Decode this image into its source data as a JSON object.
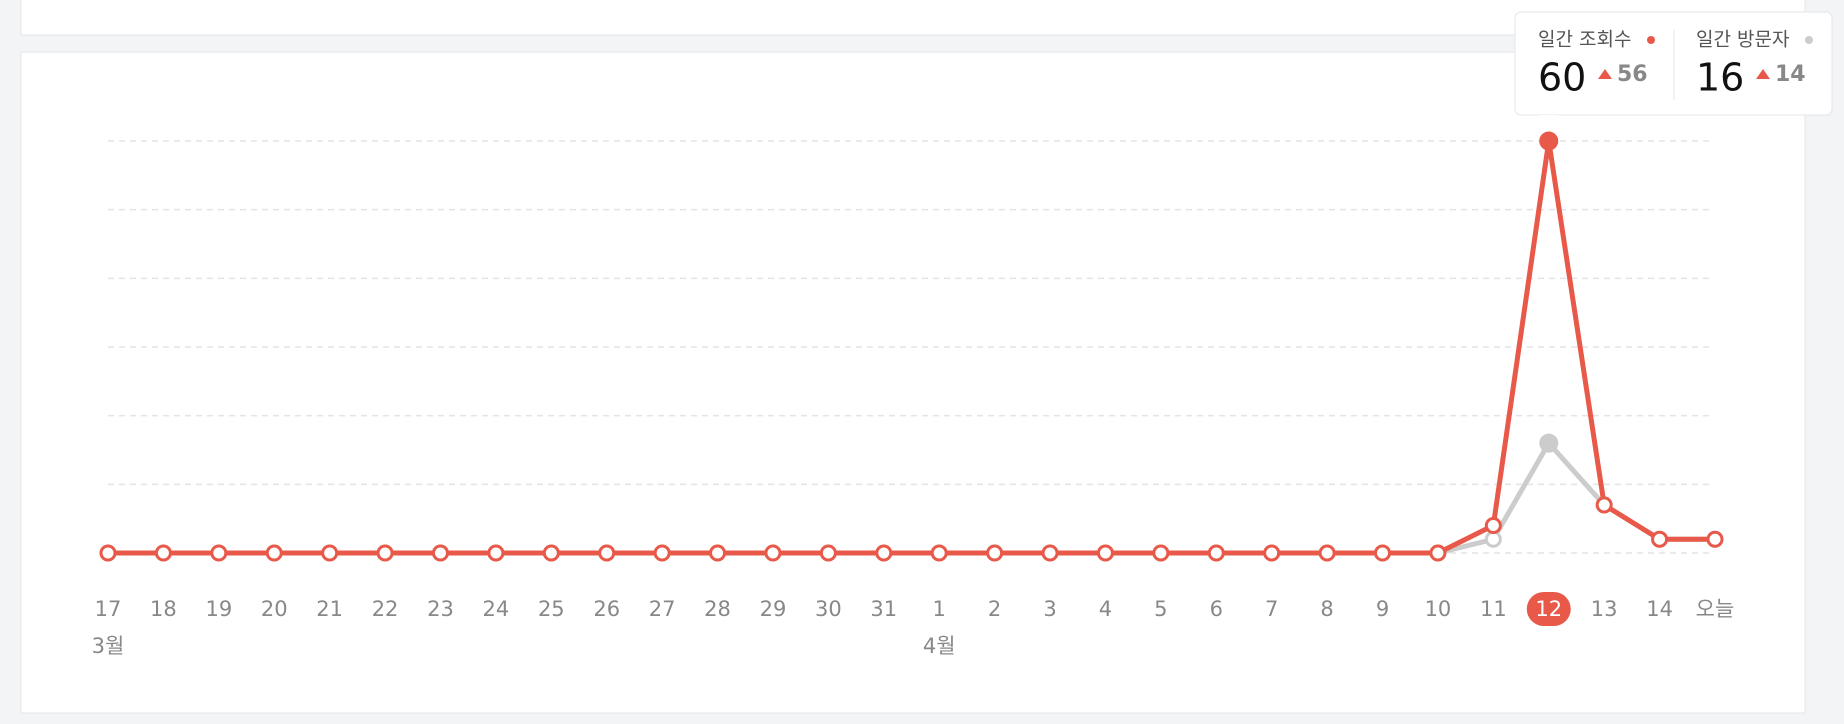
{
  "chart_data": {
    "type": "line",
    "categories": [
      "17",
      "18",
      "19",
      "20",
      "21",
      "22",
      "23",
      "24",
      "25",
      "26",
      "27",
      "28",
      "29",
      "30",
      "31",
      "1",
      "2",
      "3",
      "4",
      "5",
      "6",
      "7",
      "8",
      "9",
      "10",
      "11",
      "12",
      "13",
      "14",
      "오늘"
    ],
    "months": [
      "3월",
      null,
      null,
      null,
      null,
      null,
      null,
      null,
      null,
      null,
      null,
      null,
      null,
      null,
      null,
      "4월",
      null,
      null,
      null,
      null,
      null,
      null,
      null,
      null,
      null,
      null,
      null,
      null,
      null,
      null
    ],
    "series": [
      {
        "name": "일간 조회수",
        "color": "#e8594a",
        "values": [
          0,
          0,
          0,
          0,
          0,
          0,
          0,
          0,
          0,
          0,
          0,
          0,
          0,
          0,
          0,
          0,
          0,
          0,
          0,
          0,
          0,
          0,
          0,
          0,
          0,
          4,
          60,
          7,
          2,
          2
        ]
      },
      {
        "name": "일간 방문자",
        "color": "#cccccc",
        "values": [
          0,
          0,
          0,
          0,
          0,
          0,
          0,
          0,
          0,
          0,
          0,
          0,
          0,
          0,
          0,
          0,
          0,
          0,
          0,
          0,
          0,
          0,
          0,
          0,
          0,
          2,
          16,
          7,
          2,
          2
        ]
      }
    ],
    "ylim": [
      0,
      60
    ],
    "yticks": [
      0,
      10,
      20,
      30,
      40,
      50,
      60
    ],
    "grid": true,
    "active_index": 26,
    "tooltip": [
      {
        "value": 60,
        "change": 56
      },
      {
        "value": 16,
        "change": 14
      }
    ]
  }
}
